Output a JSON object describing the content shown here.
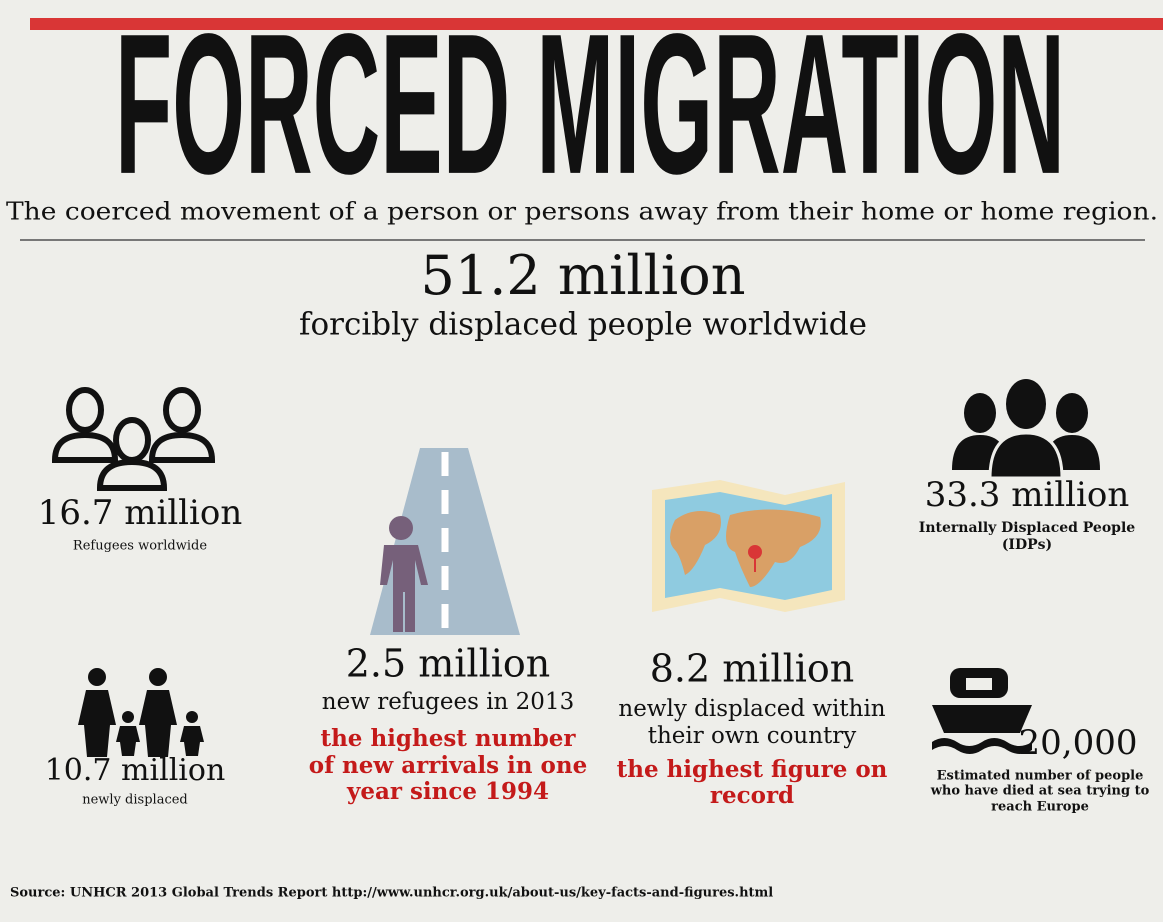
{
  "header": {
    "title": "FORCED MIGRATION",
    "subtitle": "The coerced movement of a person or persons away from their home or home region."
  },
  "headline": {
    "value": "51.2 million",
    "caption": "forcibly displaced people worldwide"
  },
  "refugees": {
    "value": "16.7 million",
    "caption": "Refugees worldwide"
  },
  "idps": {
    "value": "33.3 million",
    "caption_lines": [
      "Internally Displaced People",
      "(IDPs)"
    ]
  },
  "newly_displaced": {
    "value": "10.7 million",
    "caption": "newly displaced"
  },
  "new_refugees": {
    "value": "2.5 million",
    "caption": "new refugees in 2013",
    "highlight_lines": [
      "the highest number",
      "of new arrivals in one",
      "year since 1994"
    ]
  },
  "displaced_within": {
    "value": "8.2 million",
    "caption_lines": [
      "newly displaced within",
      "their own country"
    ],
    "highlight_lines": [
      "the highest figure on",
      "record"
    ]
  },
  "died_at_sea": {
    "value": "20,000",
    "caption_lines": [
      "Estimated number of people",
      "who have died at sea trying to",
      "reach Europe"
    ]
  },
  "source": "Source: UNHCR 2013 Global Trends Report http://www.unhcr.org.uk/about-us/key-facts-and-figures.html"
}
